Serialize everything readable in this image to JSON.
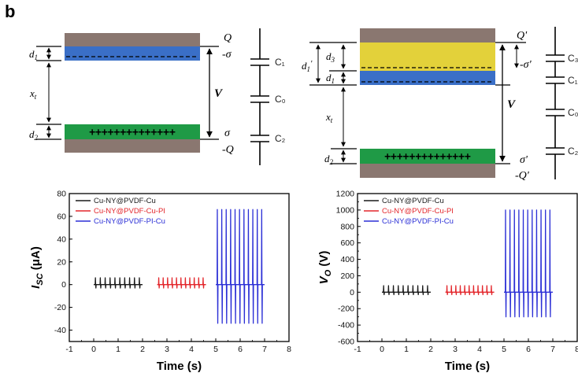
{
  "panel_label": "b",
  "left_diagram": {
    "top_charge": "Q",
    "top_dielectric_charge": "-σ",
    "bottom_dielectric_charge": "σ",
    "bottom_charge": "-Q",
    "voltage": "V",
    "d1": "d",
    "d1_sub": "1",
    "x": "x",
    "x_sub": "t",
    "d2": "d",
    "d2_sub": "2",
    "capacitors": [
      "C₁",
      "C₀",
      "C₂"
    ]
  },
  "right_diagram": {
    "top_charge": "Q'",
    "dielectric_charge": "-σ'",
    "bottom_dielectric_charge": "σ'",
    "bottom_charge": "-Q'",
    "voltage": "V",
    "d1prime": "d",
    "d1prime_sub": "1",
    "d1prime_mark": "'",
    "d3": "d",
    "d3_sub": "3",
    "d1": "d",
    "d1_sub": "1",
    "x": "x",
    "x_sub": "t",
    "d2": "d",
    "d2_sub": "2",
    "capacitors": [
      "C₃",
      "C₁",
      "C₀",
      "C₂"
    ]
  },
  "chart_data": [
    {
      "type": "line",
      "xlabel": "Time (s)",
      "ylabel_main": "I",
      "ylabel_sub": "SC",
      "ylabel_unit": " (μA)",
      "xlim": [
        -1,
        8
      ],
      "ylim": [
        -50,
        80
      ],
      "x_ticks": [
        "-1",
        "0",
        "1",
        "2",
        "3",
        "4",
        "5",
        "6",
        "7",
        "8"
      ],
      "y_ticks": [
        "-40",
        "-20",
        "0",
        "20",
        "40",
        "60",
        "80"
      ],
      "legend_position": "top-left",
      "series": [
        {
          "name": "Cu-NY@PVDF-Cu",
          "color": "#1a1a1a",
          "x_range": [
            0,
            2
          ],
          "peak_count": 10,
          "peak_max": 6,
          "peak_min": -3
        },
        {
          "name": "Cu-NY@PVDF-Cu-PI",
          "color": "#e3262b",
          "x_range": [
            2.6,
            4.6
          ],
          "peak_count": 11,
          "peak_max": 6,
          "peak_min": -3
        },
        {
          "name": "Cu-NY@PVDF-PI-Cu",
          "color": "#2b2fd6",
          "x_range": [
            5,
            7
          ],
          "peak_count": 11,
          "peak_max": 66,
          "peak_min": -34
        }
      ]
    },
    {
      "type": "line",
      "xlabel": "Time (s)",
      "ylabel_main": "V",
      "ylabel_sub": "O",
      "ylabel_unit": " (V)",
      "xlim": [
        -1,
        8
      ],
      "ylim": [
        -600,
        1200
      ],
      "x_ticks": [
        "-1",
        "0",
        "1",
        "2",
        "3",
        "4",
        "5",
        "6",
        "7",
        "8"
      ],
      "y_ticks": [
        "-600",
        "-400",
        "-200",
        "0",
        "200",
        "400",
        "600",
        "800",
        "1000",
        "1200"
      ],
      "legend_position": "top-left",
      "series": [
        {
          "name": "Cu-NY@PVDF-Cu",
          "color": "#1a1a1a",
          "x_range": [
            0,
            2
          ],
          "peak_count": 10,
          "peak_max": 80,
          "peak_min": -30
        },
        {
          "name": "Cu-NY@PVDF-Cu-PI",
          "color": "#e3262b",
          "x_range": [
            2.6,
            4.6
          ],
          "peak_count": 11,
          "peak_max": 80,
          "peak_min": -30
        },
        {
          "name": "Cu-NY@PVDF-PI-Cu",
          "color": "#2b2fd6",
          "x_range": [
            5,
            7
          ],
          "peak_count": 11,
          "peak_max": 1000,
          "peak_min": -300
        }
      ]
    }
  ]
}
